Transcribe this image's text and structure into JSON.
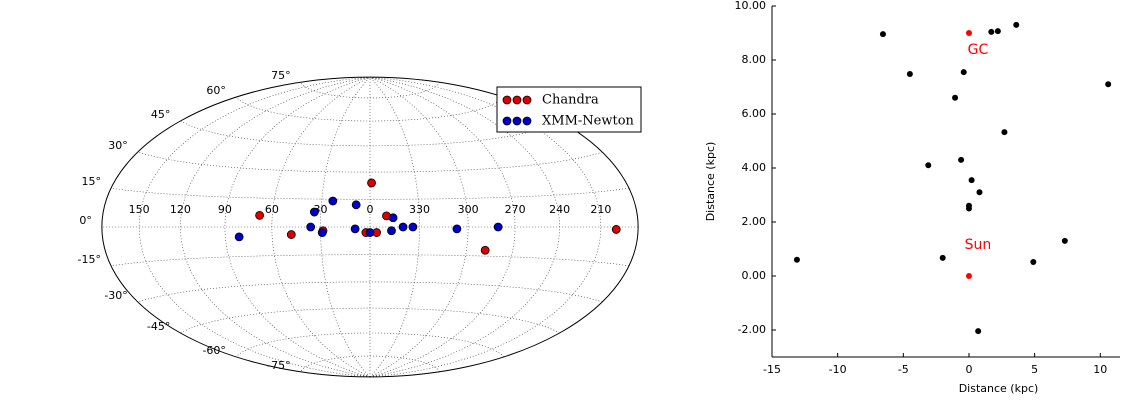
{
  "chart_data": [
    {
      "type": "scatter",
      "projection": "hammer",
      "series": [
        {
          "name": "Chandra",
          "color": "#dd0000",
          "x": [
            359,
            68,
            48,
            28.5,
            2.5,
            356,
            350,
            288,
            198
          ],
          "values": [
            24,
            6,
            -4,
            -2,
            -3,
            -3,
            6,
            -12,
            -1
          ]
        },
        {
          "name": "XMM-Newton",
          "color": "#0000cc",
          "x": [
            81,
            34,
            23,
            36,
            29,
            8.5,
            9,
            0,
            346,
            347,
            340,
            334,
            307,
            281
          ],
          "values": [
            -5,
            8,
            14,
            0,
            -3,
            12,
            -1,
            -3,
            5,
            -2,
            0,
            0,
            -1,
            0
          ]
        }
      ],
      "xticks": [
        150,
        120,
        90,
        60,
        30,
        0,
        330,
        300,
        270,
        240,
        210
      ],
      "yticks": [
        {
          "value": 75,
          "label": "75°"
        },
        {
          "value": 60,
          "label": "60°"
        },
        {
          "value": 45,
          "label": "45°"
        },
        {
          "value": 30,
          "label": "30°"
        },
        {
          "value": 15,
          "label": "15°"
        },
        {
          "value": 0,
          "label": "0°"
        },
        {
          "value": -15,
          "label": "-15°"
        },
        {
          "value": -30,
          "label": "-30°"
        },
        {
          "value": -45,
          "label": "-45°"
        },
        {
          "value": -60,
          "label": "-60°"
        },
        {
          "value": -75,
          "label": "-75°"
        }
      ],
      "grid": true,
      "legend": "upper right"
    },
    {
      "type": "scatter",
      "xlabel": "Distance (kpc)",
      "ylabel": "Distance (kpc)",
      "xlim": [
        -15,
        11.5
      ],
      "ylim": [
        -3,
        10
      ],
      "xticks": [
        -15,
        -10,
        -5,
        0,
        5,
        10
      ],
      "yticks": [
        {
          "value": -2,
          "label": "-2.00"
        },
        {
          "value": 0,
          "label": "0.00"
        },
        {
          "value": 2,
          "label": "2.00"
        },
        {
          "value": 4,
          "label": "4.00"
        },
        {
          "value": 6,
          "label": "6.00"
        },
        {
          "value": 8,
          "label": "8.00"
        },
        {
          "value": 10,
          "label": "10.00"
        }
      ],
      "series": [
        {
          "color": "#000000",
          "x": [
            -13.1,
            -6.55,
            -4.5,
            -2.0,
            -3.1,
            -1.06,
            -0.6,
            -0.4,
            0,
            0,
            0.2,
            0.8,
            0.7,
            1.7,
            2.2,
            2.7,
            3.6,
            4.9,
            7.3,
            10.6
          ],
          "values": [
            0.6,
            8.96,
            7.48,
            0.67,
            4.1,
            6.6,
            4.3,
            7.55,
            2.6,
            2.5,
            3.55,
            3.1,
            -2.04,
            9.04,
            9.07,
            5.33,
            9.3,
            0.52,
            1.3,
            7.1
          ]
        }
      ],
      "annotations": [
        {
          "text": "GC",
          "x": 0,
          "y": 9.0
        },
        {
          "text": "Sun",
          "x": 0,
          "y": 0
        }
      ],
      "annotation_color": "#ff0000"
    }
  ]
}
